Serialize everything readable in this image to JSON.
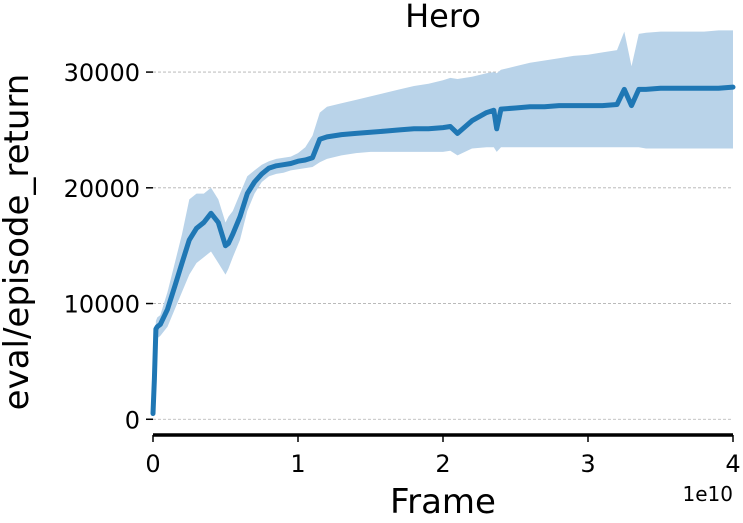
{
  "chart_data": {
    "type": "line",
    "title": "Hero",
    "xlabel": "Frame",
    "ylabel": "eval/episode_return",
    "x_offset_text": "1e10",
    "xlim": [
      0,
      4
    ],
    "ylim": [
      -1100,
      34500
    ],
    "x_ticks": [
      0,
      1,
      2,
      3,
      4
    ],
    "x_tick_labels": [
      "0",
      "1",
      "2",
      "3",
      "4"
    ],
    "y_ticks": [
      0,
      10000,
      20000,
      30000
    ],
    "y_tick_labels": [
      "0",
      "10000",
      "20000",
      "30000"
    ],
    "grid": "horizontal dashed",
    "colors": {
      "line": "#1f77b4",
      "band": "#b9d3e9",
      "grid": "#b0b0b0",
      "axis": "#000000"
    },
    "series": [
      {
        "x": [
          0.0,
          0.01,
          0.02,
          0.03,
          0.05,
          0.1,
          0.15,
          0.2,
          0.25,
          0.3,
          0.35,
          0.4,
          0.45,
          0.5,
          0.52,
          0.55,
          0.6,
          0.65,
          0.7,
          0.75,
          0.8,
          0.85,
          0.9,
          0.95,
          1.0,
          1.05,
          1.1,
          1.15,
          1.2,
          1.3,
          1.4,
          1.5,
          1.6,
          1.7,
          1.8,
          1.9,
          2.0,
          2.05,
          2.1,
          2.2,
          2.3,
          2.35,
          2.37,
          2.4,
          2.5,
          2.6,
          2.7,
          2.8,
          2.9,
          3.0,
          3.1,
          3.2,
          3.25,
          3.3,
          3.35,
          3.4,
          3.5,
          3.6,
          3.7,
          3.8,
          3.9,
          4.0
        ],
        "mean": [
          500,
          3500,
          7800,
          8000,
          8200,
          9500,
          11500,
          13500,
          15500,
          16500,
          17000,
          17800,
          17000,
          15000,
          15200,
          16000,
          17500,
          19500,
          20500,
          21200,
          21700,
          21900,
          22000,
          22100,
          22300,
          22400,
          22600,
          24200,
          24400,
          24600,
          24700,
          24800,
          24900,
          25000,
          25100,
          25100,
          25200,
          25300,
          24700,
          25800,
          26500,
          26700,
          25100,
          26800,
          26900,
          27000,
          27000,
          27100,
          27100,
          27100,
          27100,
          27200,
          28500,
          27100,
          28500,
          28500,
          28600,
          28600,
          28600,
          28600,
          28600,
          28700
        ],
        "lower": [
          0,
          1500,
          6500,
          7000,
          7200,
          8000,
          9500,
          11000,
          12500,
          13500,
          14000,
          14500,
          13500,
          12500,
          13000,
          14000,
          15500,
          18000,
          19500,
          20500,
          21000,
          21200,
          21300,
          21500,
          21600,
          21700,
          21800,
          22200,
          22500,
          22800,
          23000,
          23100,
          23100,
          23100,
          23100,
          23100,
          23100,
          23200,
          22800,
          23400,
          23500,
          23500,
          23100,
          23500,
          23500,
          23500,
          23500,
          23500,
          23500,
          23500,
          23500,
          23500,
          23500,
          23500,
          23500,
          23400,
          23400,
          23400,
          23400,
          23400,
          23400,
          23400
        ],
        "upper": [
          1500,
          5000,
          8500,
          8800,
          9000,
          11000,
          13500,
          16000,
          19000,
          19500,
          19500,
          20000,
          19000,
          17000,
          17500,
          18000,
          19500,
          21000,
          21500,
          22000,
          22300,
          22500,
          22600,
          22700,
          23000,
          23500,
          24500,
          26500,
          27000,
          27300,
          27600,
          27900,
          28200,
          28500,
          28800,
          29000,
          29300,
          29500,
          29400,
          29600,
          29900,
          30000,
          29900,
          30200,
          30500,
          30800,
          31000,
          31200,
          31400,
          31500,
          31700,
          31900,
          33500,
          30500,
          33300,
          33400,
          33500,
          33500,
          33500,
          33500,
          33600,
          33600
        ]
      }
    ]
  }
}
